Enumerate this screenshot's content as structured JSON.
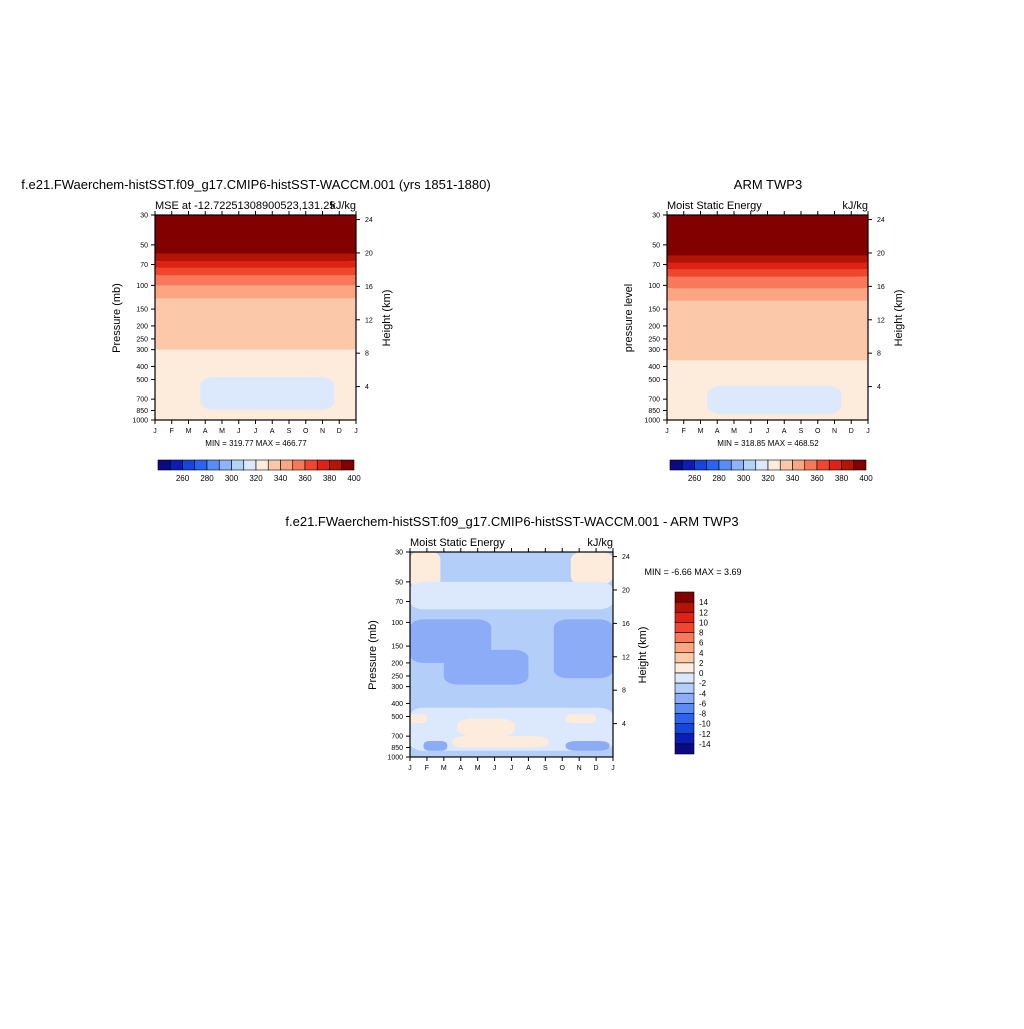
{
  "colors": {
    "abs_scale": [
      "#0a0a82",
      "#0a1eb4",
      "#1446dc",
      "#2864f0",
      "#5a8cf5",
      "#8cb4f8",
      "#b4d2fa",
      "#dce9fc",
      "#fdebdb",
      "#fcc8aa",
      "#fba582",
      "#f8785a",
      "#f0462d",
      "#dc2314",
      "#b41405",
      "#820000"
    ],
    "diff_scale": [
      "#0a0a82",
      "#0a1eb4",
      "#1446dc",
      "#2864f0",
      "#5a8cf5",
      "#8cacf8",
      "#b4cefa",
      "#dce9fc",
      "#fdebdb",
      "#fcc8aa",
      "#fba582",
      "#f8785a",
      "#f0462d",
      "#dc2314",
      "#b41405",
      "#820000"
    ]
  },
  "chart_data": [
    {
      "id": "model",
      "type": "heatmap",
      "title": "f.e21.FWaerchem-histSST.f09_g17.CMIP6-histSST-WACCM.001 (yrs 1851-1880)",
      "left_string": "MSE at -12.72251308900523,131.25",
      "right_string": "kJ/kg",
      "ylabel": "Pressure (mb)",
      "ylabel_right": "Height (km)",
      "x_ticks": [
        "J",
        "F",
        "M",
        "A",
        "M",
        "J",
        "J",
        "A",
        "S",
        "O",
        "N",
        "D",
        "J"
      ],
      "y_ticks": [
        "30",
        "50",
        "70",
        "100",
        "150",
        "200",
        "250",
        "300",
        "400",
        "500",
        "700",
        "850",
        "1000"
      ],
      "y_ticks_right": [
        "24",
        "20",
        "16",
        "12",
        "8",
        "4"
      ],
      "stats": "MIN = 319.77  MAX = 466.77",
      "min": 319.77,
      "max": 466.77,
      "colorbar_labels": [
        "260",
        "280",
        "300",
        "320",
        "340",
        "360",
        "380",
        "400"
      ],
      "layers": [
        {
          "p_top": 30,
          "p_bot": 58,
          "level": 15
        },
        {
          "p_top": 58,
          "p_bot": 66,
          "level": 14
        },
        {
          "p_top": 66,
          "p_bot": 74,
          "level": 13
        },
        {
          "p_top": 74,
          "p_bot": 84,
          "level": 12
        },
        {
          "p_top": 84,
          "p_bot": 100,
          "level": 11
        },
        {
          "p_top": 100,
          "p_bot": 125,
          "level": 10
        },
        {
          "p_top": 125,
          "p_bot": 300,
          "level": 9
        },
        {
          "p_top": 300,
          "p_bot": 1000,
          "level": 8
        }
      ],
      "blobs": [
        {
          "level": 7,
          "month_start": 2.7,
          "month_end": 10.7,
          "p_top": 480,
          "p_bot": 840
        }
      ]
    },
    {
      "id": "obs",
      "type": "heatmap",
      "title": "ARM TWP3",
      "left_string": "Moist Static Energy",
      "right_string": "kJ/kg",
      "ylabel": "pressure level",
      "ylabel_right": "Height (km)",
      "x_ticks": [
        "J",
        "F",
        "M",
        "A",
        "M",
        "J",
        "J",
        "A",
        "S",
        "O",
        "N",
        "D",
        "J"
      ],
      "y_ticks": [
        "30",
        "50",
        "70",
        "100",
        "150",
        "200",
        "250",
        "300",
        "400",
        "500",
        "700",
        "850",
        "1000"
      ],
      "y_ticks_right": [
        "24",
        "20",
        "16",
        "12",
        "8",
        "4"
      ],
      "stats": "MIN = 318.85  MAX = 468.52",
      "min": 318.85,
      "max": 468.52,
      "colorbar_labels": [
        "260",
        "280",
        "300",
        "320",
        "340",
        "360",
        "380",
        "400"
      ],
      "layers": [
        {
          "p_top": 30,
          "p_bot": 60,
          "level": 15
        },
        {
          "p_top": 60,
          "p_bot": 68,
          "level": 14
        },
        {
          "p_top": 68,
          "p_bot": 76,
          "level": 13
        },
        {
          "p_top": 76,
          "p_bot": 86,
          "level": 12
        },
        {
          "p_top": 86,
          "p_bot": 105,
          "level": 11
        },
        {
          "p_top": 105,
          "p_bot": 130,
          "level": 10
        },
        {
          "p_top": 130,
          "p_bot": 360,
          "level": 9
        },
        {
          "p_top": 360,
          "p_bot": 1000,
          "level": 8
        }
      ],
      "blobs": [
        {
          "level": 7,
          "month_start": 2.4,
          "month_end": 10.4,
          "p_top": 560,
          "p_bot": 900
        }
      ]
    },
    {
      "id": "diff",
      "type": "heatmap",
      "title": "f.e21.FWaerchem-histSST.f09_g17.CMIP6-histSST-WACCM.001 - ARM TWP3",
      "left_string": "Moist Static Energy",
      "right_string": "kJ/kg",
      "ylabel": "Pressure (mb)",
      "ylabel_right": "Height (km)",
      "x_ticks": [
        "J",
        "F",
        "M",
        "A",
        "M",
        "J",
        "J",
        "A",
        "S",
        "O",
        "N",
        "D",
        "J"
      ],
      "y_ticks": [
        "30",
        "50",
        "70",
        "100",
        "150",
        "200",
        "250",
        "300",
        "400",
        "500",
        "700",
        "850",
        "1000"
      ],
      "y_ticks_right": [
        "24",
        "20",
        "16",
        "12",
        "8",
        "4"
      ],
      "stats": "MIN =  -6.66  MAX =   3.69",
      "min": -6.66,
      "max": 3.69,
      "colorbar_labels": [
        "14",
        "12",
        "10",
        "8",
        "6",
        "4",
        "2",
        "0",
        "-2",
        "-4",
        "-6",
        "-8",
        "-10",
        "-12",
        "-14"
      ],
      "layers": [
        {
          "p_top": 30,
          "p_bot": 1000,
          "level": 6
        }
      ],
      "blobs": [
        {
          "level": 8,
          "month_start": 0,
          "month_end": 1.8,
          "p_top": 30,
          "p_bot": 55
        },
        {
          "level": 8,
          "month_start": 9.5,
          "month_end": 12,
          "p_top": 30,
          "p_bot": 52
        },
        {
          "level": 7,
          "month_start": 0,
          "month_end": 12,
          "p_top": 50,
          "p_bot": 80
        },
        {
          "level": 5,
          "month_start": 0,
          "month_end": 4.8,
          "p_top": 95,
          "p_bot": 200
        },
        {
          "level": 5,
          "month_start": 2,
          "month_end": 7,
          "p_top": 160,
          "p_bot": 290
        },
        {
          "level": 5,
          "month_start": 8.5,
          "month_end": 12,
          "p_top": 95,
          "p_bot": 260
        },
        {
          "level": 7,
          "month_start": 0,
          "month_end": 12,
          "p_top": 430,
          "p_bot": 900
        },
        {
          "level": 8,
          "month_start": 0,
          "month_end": 1,
          "p_top": 480,
          "p_bot": 560
        },
        {
          "level": 8,
          "month_start": 2.8,
          "month_end": 6.2,
          "p_top": 520,
          "p_bot": 700
        },
        {
          "level": 8,
          "month_start": 9.2,
          "month_end": 11,
          "p_top": 480,
          "p_bot": 560
        },
        {
          "level": 8,
          "month_start": 2.5,
          "month_end": 8.2,
          "p_top": 700,
          "p_bot": 850
        },
        {
          "level": 5,
          "month_start": 0.8,
          "month_end": 2.2,
          "p_top": 760,
          "p_bot": 900
        },
        {
          "level": 5,
          "month_start": 9.2,
          "month_end": 11.8,
          "p_top": 760,
          "p_bot": 900
        },
        {
          "level": 6,
          "month_start": 0,
          "month_end": 12,
          "p_top": 900,
          "p_bot": 1000
        }
      ]
    }
  ]
}
